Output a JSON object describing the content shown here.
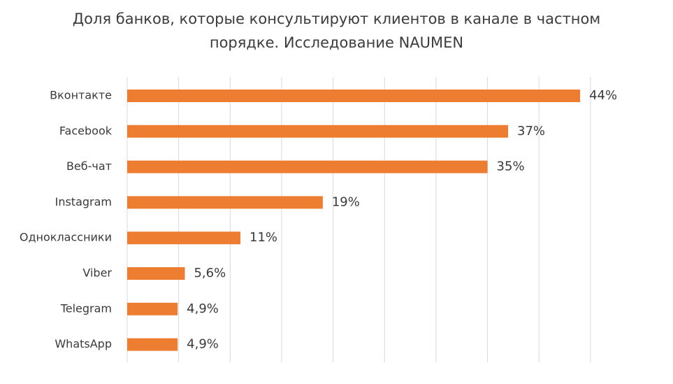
{
  "chart_data": {
    "type": "bar",
    "orientation": "horizontal",
    "title": "Доля банков, которые консультируют клиентов в канале в частном порядке. Исследование NAUMEN",
    "title_lines": [
      "Доля банков, которые консультируют клиентов в канале в частном",
      "порядке. Исследование NAUMEN"
    ],
    "categories": [
      "Вконтакте",
      "Facebook",
      "Веб-чат",
      "Instagram",
      "Одноклассники",
      "Viber",
      "Telegram",
      "WhatsApp"
    ],
    "values": [
      44,
      37,
      35,
      19,
      11,
      5.6,
      4.9,
      4.9
    ],
    "value_labels": [
      "44%",
      "37%",
      "35%",
      "19%",
      "11%",
      "5,6%",
      "4,9%",
      "4,9%"
    ],
    "xlim": [
      0,
      45
    ],
    "grid_step": 5,
    "grid": true,
    "legend": "none",
    "bar_color": "#ED7D31",
    "grid_color": "#D9D9D9"
  }
}
